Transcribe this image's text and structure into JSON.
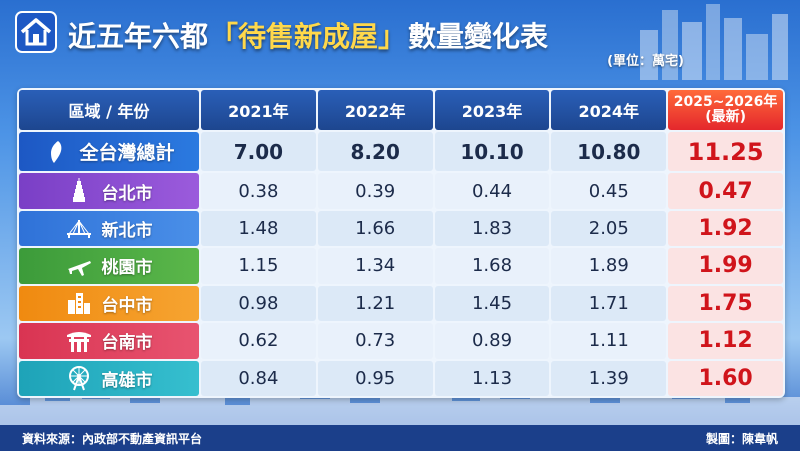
{
  "header": {
    "title_prefix": "近五年六都",
    "title_highlight": "「待售新成屋」",
    "title_suffix": "數量變化表",
    "unit": "(單位：萬宅)"
  },
  "table": {
    "columns": [
      "區域 / 年份",
      "2021年",
      "2022年",
      "2023年",
      "2024年",
      "2025~2026年\n(最新)"
    ],
    "column_latest_line1": "2025~2026年",
    "column_latest_line2": "(最新)",
    "rows": [
      {
        "region": "全台灣總計",
        "icon": "taiwan-map-icon",
        "values": [
          "7.00",
          "8.20",
          "10.10",
          "10.80",
          "11.25"
        ]
      },
      {
        "region": "台北市",
        "icon": "taipei-101-icon",
        "values": [
          "0.38",
          "0.39",
          "0.44",
          "0.45",
          "0.47"
        ]
      },
      {
        "region": "新北市",
        "icon": "bridge-icon",
        "values": [
          "1.48",
          "1.66",
          "1.83",
          "2.05",
          "1.92"
        ]
      },
      {
        "region": "桃園市",
        "icon": "airplane-icon",
        "values": [
          "1.15",
          "1.34",
          "1.68",
          "1.89",
          "1.99"
        ]
      },
      {
        "region": "台中市",
        "icon": "buildings-icon",
        "values": [
          "0.98",
          "1.21",
          "1.45",
          "1.71",
          "1.75"
        ]
      },
      {
        "region": "台南市",
        "icon": "temple-gate-icon",
        "values": [
          "0.62",
          "0.73",
          "0.89",
          "1.11",
          "1.12"
        ]
      },
      {
        "region": "高雄市",
        "icon": "ferris-wheel-icon",
        "values": [
          "0.84",
          "0.95",
          "1.13",
          "1.39",
          "1.60"
        ]
      }
    ]
  },
  "footer": {
    "source": "資料來源：內政部不動產資訊平台",
    "credit": "製圖：陳韋帆"
  },
  "colors": {
    "header_blue": "#1d468f",
    "latest_red": "#d0141b",
    "title_yellow": "#ffd84a"
  }
}
